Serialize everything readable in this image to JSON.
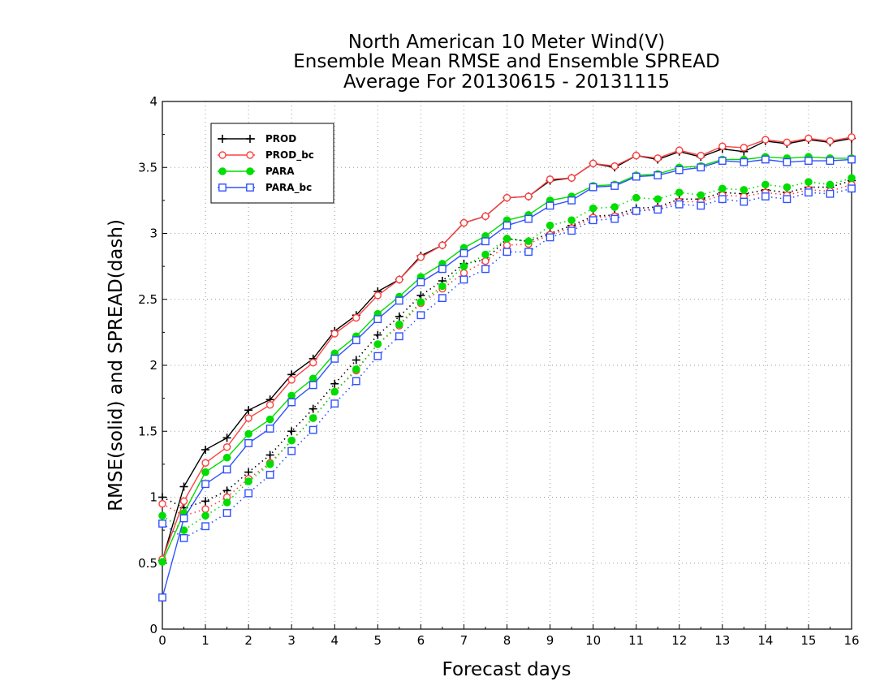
{
  "chart_data": {
    "type": "line",
    "title": [
      "North American 10 Meter Wind(V)",
      "Ensemble Mean RMSE and Ensemble SPREAD",
      "Average For 20130615 - 20131115"
    ],
    "xlabel": "Forecast days",
    "ylabel": "RMSE(solid) and SPREAD(dash)",
    "xlim": [
      0,
      16
    ],
    "ylim": [
      0,
      4
    ],
    "xticks": [
      "0",
      "1",
      "2",
      "3",
      "4",
      "5",
      "6",
      "7",
      "8",
      "9",
      "10",
      "11",
      "12",
      "13",
      "14",
      "15",
      "16"
    ],
    "yticks": [
      "0",
      "0.5",
      "1",
      "1.5",
      "2",
      "2.5",
      "3",
      "3.5",
      "4"
    ],
    "grid": true,
    "legend_position": "top-left",
    "x": [
      0,
      0.5,
      1,
      1.5,
      2,
      2.5,
      3,
      3.5,
      4,
      4.5,
      5,
      5.5,
      6,
      6.5,
      7,
      7.5,
      8,
      8.5,
      9,
      9.5,
      10,
      10.5,
      11,
      11.5,
      12,
      12.5,
      13,
      13.5,
      14,
      14.5,
      15,
      15.5,
      16
    ],
    "series": [
      {
        "name": "PROD",
        "color": "#000000",
        "marker": "plus",
        "rmse": [
          0.52,
          1.08,
          1.36,
          1.45,
          1.66,
          1.74,
          1.93,
          2.05,
          2.26,
          2.38,
          2.56,
          2.65,
          2.83,
          2.91,
          3.08,
          3.13,
          3.27,
          3.28,
          3.4,
          3.42,
          3.53,
          3.5,
          3.59,
          3.56,
          3.62,
          3.58,
          3.64,
          3.62,
          3.7,
          3.68,
          3.71,
          3.69,
          3.72
        ],
        "spread": [
          1.0,
          0.92,
          0.97,
          1.05,
          1.19,
          1.32,
          1.5,
          1.67,
          1.86,
          2.04,
          2.23,
          2.37,
          2.53,
          2.64,
          2.77,
          2.8,
          2.96,
          2.94,
          3.0,
          3.06,
          3.13,
          3.14,
          3.19,
          3.2,
          3.26,
          3.26,
          3.31,
          3.3,
          3.33,
          3.31,
          3.35,
          3.35,
          3.4
        ]
      },
      {
        "name": "PROD_bc",
        "color": "#ff4040",
        "marker": "open-circle",
        "rmse": [
          0.53,
          0.97,
          1.26,
          1.38,
          1.6,
          1.7,
          1.89,
          2.02,
          2.24,
          2.36,
          2.53,
          2.65,
          2.82,
          2.91,
          3.08,
          3.13,
          3.27,
          3.28,
          3.41,
          3.42,
          3.53,
          3.51,
          3.59,
          3.57,
          3.63,
          3.59,
          3.66,
          3.65,
          3.71,
          3.69,
          3.72,
          3.7,
          3.73
        ],
        "spread": [
          0.95,
          0.86,
          0.91,
          1.0,
          1.14,
          1.26,
          1.43,
          1.6,
          1.8,
          1.96,
          2.16,
          2.3,
          2.47,
          2.58,
          2.7,
          2.79,
          2.91,
          2.92,
          2.99,
          3.04,
          3.12,
          3.13,
          3.17,
          3.19,
          3.24,
          3.24,
          3.29,
          3.28,
          3.31,
          3.29,
          3.33,
          3.32,
          3.37
        ]
      },
      {
        "name": "PARA",
        "color": "#00dd00",
        "marker": "filled-circle",
        "rmse": [
          0.51,
          0.88,
          1.19,
          1.3,
          1.48,
          1.59,
          1.77,
          1.9,
          2.09,
          2.22,
          2.39,
          2.52,
          2.67,
          2.77,
          2.89,
          2.98,
          3.1,
          3.14,
          3.25,
          3.28,
          3.36,
          3.37,
          3.44,
          3.45,
          3.5,
          3.51,
          3.56,
          3.56,
          3.58,
          3.57,
          3.58,
          3.57,
          3.57
        ],
        "spread": [
          0.86,
          0.75,
          0.86,
          0.96,
          1.12,
          1.25,
          1.43,
          1.6,
          1.8,
          1.97,
          2.16,
          2.31,
          2.48,
          2.6,
          2.75,
          2.84,
          2.96,
          2.94,
          3.06,
          3.1,
          3.19,
          3.2,
          3.27,
          3.26,
          3.31,
          3.29,
          3.34,
          3.33,
          3.37,
          3.35,
          3.39,
          3.37,
          3.42
        ]
      },
      {
        "name": "PARA_bc",
        "color": "#3050ff",
        "marker": "open-square",
        "rmse": [
          0.24,
          0.84,
          1.1,
          1.21,
          1.41,
          1.52,
          1.72,
          1.85,
          2.05,
          2.19,
          2.35,
          2.49,
          2.63,
          2.73,
          2.85,
          2.94,
          3.06,
          3.11,
          3.21,
          3.25,
          3.35,
          3.36,
          3.43,
          3.44,
          3.48,
          3.5,
          3.55,
          3.54,
          3.56,
          3.54,
          3.55,
          3.55,
          3.56
        ],
        "spread": [
          0.8,
          0.69,
          0.78,
          0.88,
          1.03,
          1.17,
          1.35,
          1.51,
          1.71,
          1.88,
          2.07,
          2.22,
          2.38,
          2.51,
          2.65,
          2.73,
          2.86,
          2.86,
          2.97,
          3.02,
          3.1,
          3.11,
          3.17,
          3.18,
          3.22,
          3.21,
          3.26,
          3.24,
          3.28,
          3.26,
          3.31,
          3.3,
          3.34
        ]
      }
    ]
  }
}
